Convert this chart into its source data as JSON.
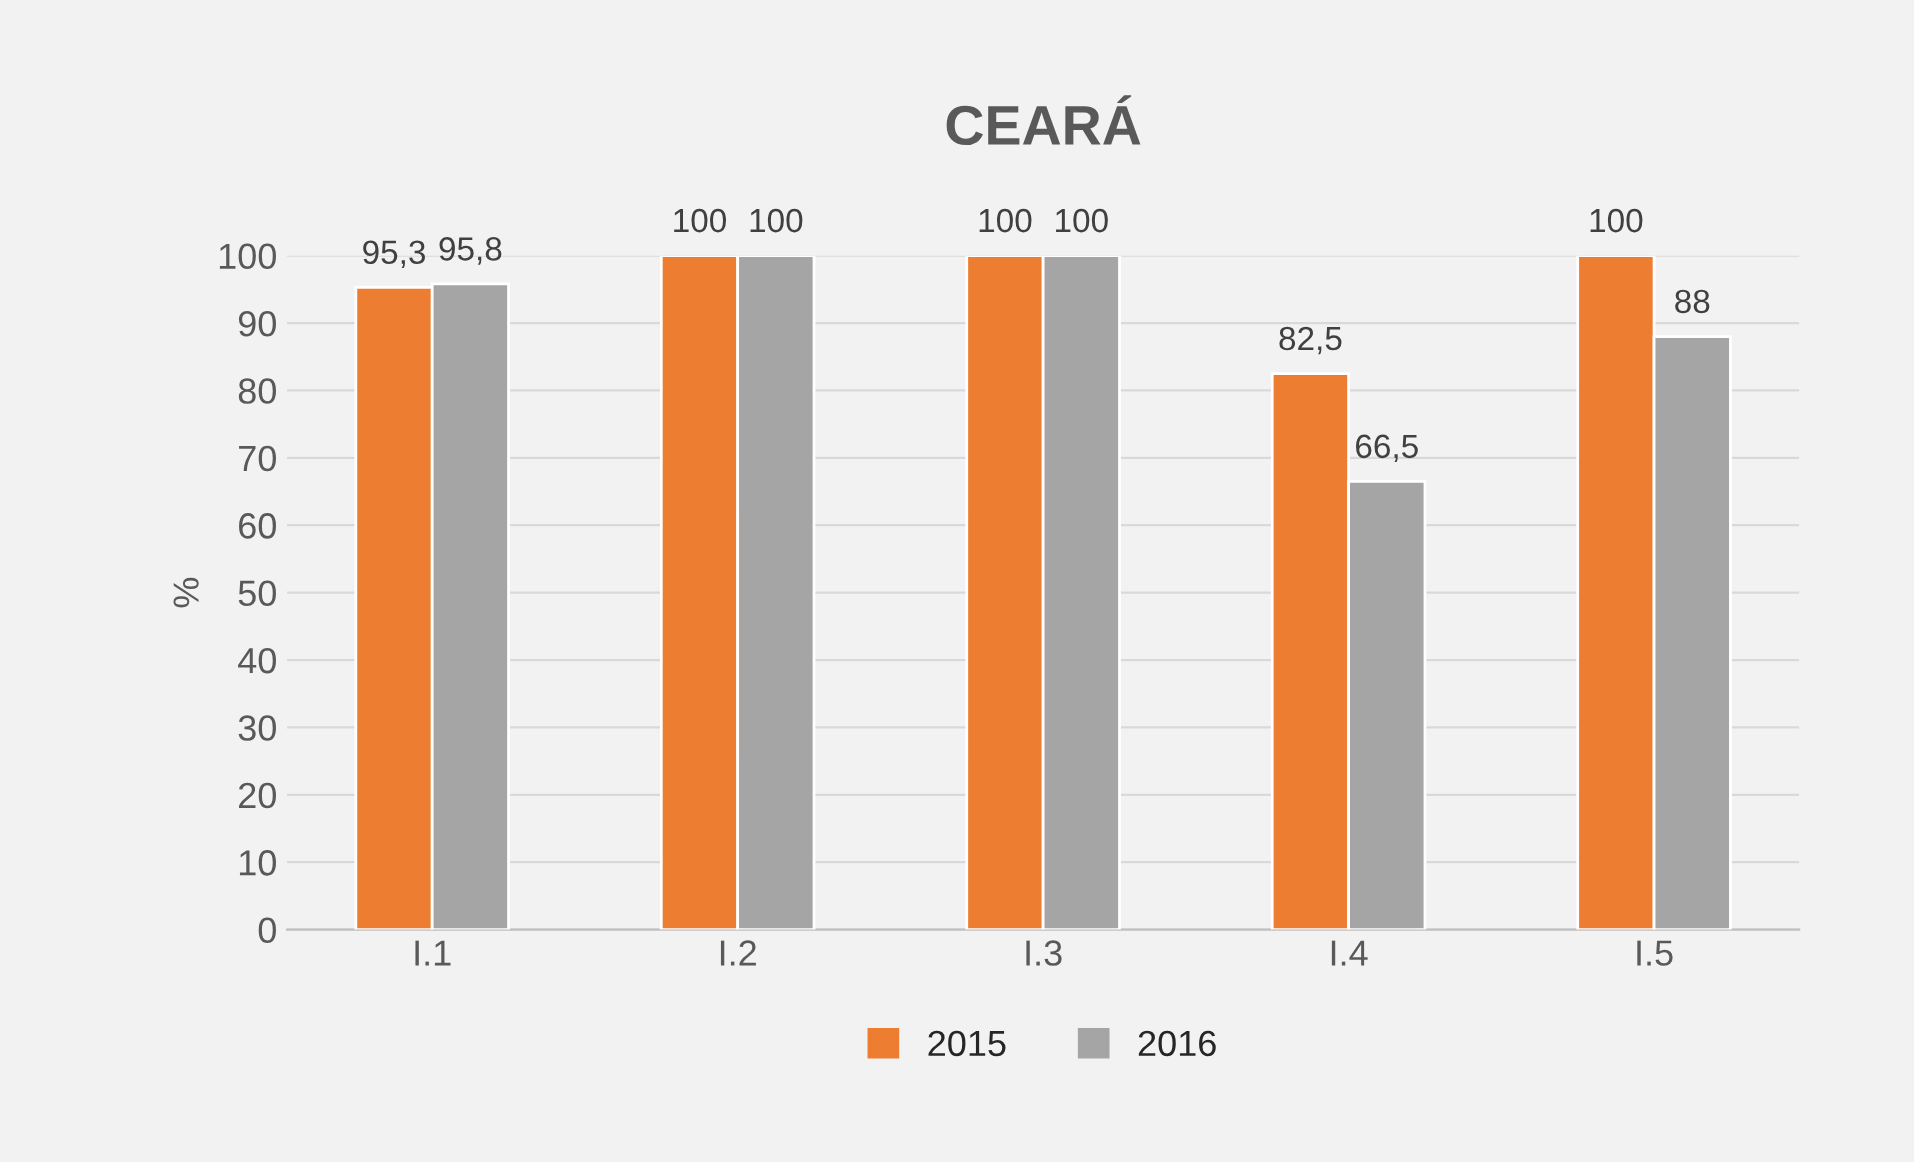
{
  "chart_data": {
    "type": "bar",
    "title": "CEARÁ",
    "ylabel": "%",
    "categories": [
      "I.1",
      "I.2",
      "I.3",
      "I.4",
      "I.5"
    ],
    "series": [
      {
        "name": "2015",
        "color": "#ed7d31",
        "values": [
          95.3,
          100,
          100,
          82.5,
          100
        ],
        "value_labels": [
          "95,3",
          "100",
          "100",
          "82,5",
          "100"
        ]
      },
      {
        "name": "2016",
        "color": "#a5a5a5",
        "values": [
          95.8,
          100,
          100,
          66.5,
          88
        ],
        "value_labels": [
          "95,8",
          "100",
          "100",
          "66,5",
          "88"
        ]
      }
    ],
    "ylim": [
      0,
      100
    ],
    "yticks": [
      0,
      10,
      20,
      30,
      40,
      50,
      60,
      70,
      80,
      90,
      100
    ],
    "grid": "y",
    "legend": "bottom"
  }
}
